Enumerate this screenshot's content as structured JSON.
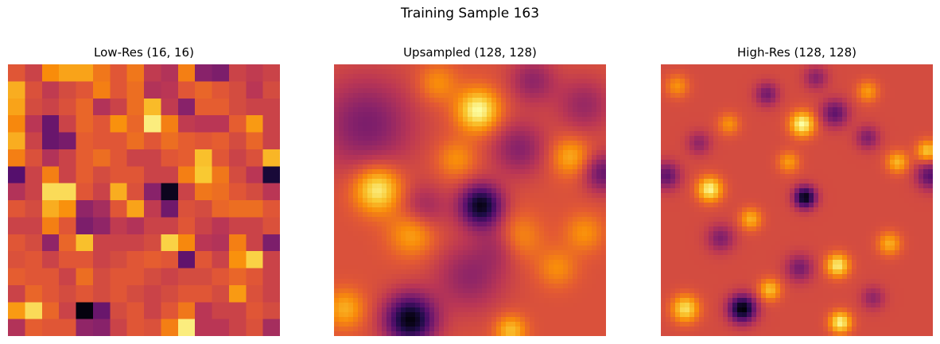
{
  "figure": {
    "title": "Training Sample 163"
  },
  "chart_data": [
    {
      "type": "heatmap",
      "title": "Low-Res (16, 16)",
      "colormap": "inferno",
      "axes": "off",
      "vmin": 0,
      "vmax": 1,
      "rows": 16,
      "cols": 16,
      "values": [
        [
          0.62,
          0.55,
          0.75,
          0.8,
          0.8,
          0.7,
          0.62,
          0.7,
          0.52,
          0.48,
          0.72,
          0.38,
          0.35,
          0.55,
          0.52,
          0.55
        ],
        [
          0.82,
          0.6,
          0.52,
          0.58,
          0.62,
          0.72,
          0.62,
          0.68,
          0.48,
          0.5,
          0.62,
          0.66,
          0.62,
          0.58,
          0.5,
          0.58
        ],
        [
          0.8,
          0.58,
          0.55,
          0.6,
          0.66,
          0.48,
          0.55,
          0.68,
          0.85,
          0.52,
          0.38,
          0.64,
          0.64,
          0.58,
          0.55,
          0.55
        ],
        [
          0.74,
          0.5,
          0.3,
          0.55,
          0.66,
          0.62,
          0.76,
          0.66,
          0.96,
          0.72,
          0.52,
          0.5,
          0.5,
          0.64,
          0.78,
          0.55
        ],
        [
          0.82,
          0.55,
          0.3,
          0.34,
          0.64,
          0.62,
          0.62,
          0.68,
          0.62,
          0.68,
          0.64,
          0.62,
          0.64,
          0.58,
          0.66,
          0.55
        ],
        [
          0.72,
          0.6,
          0.48,
          0.55,
          0.64,
          0.68,
          0.62,
          0.55,
          0.55,
          0.62,
          0.64,
          0.86,
          0.62,
          0.55,
          0.6,
          0.84
        ],
        [
          0.25,
          0.55,
          0.72,
          0.55,
          0.64,
          0.58,
          0.62,
          0.62,
          0.55,
          0.55,
          0.72,
          0.88,
          0.7,
          0.58,
          0.5,
          0.1
        ],
        [
          0.48,
          0.55,
          0.92,
          0.92,
          0.62,
          0.55,
          0.82,
          0.6,
          0.38,
          0.05,
          0.55,
          0.7,
          0.68,
          0.62,
          0.58,
          0.5
        ],
        [
          0.62,
          0.58,
          0.82,
          0.76,
          0.4,
          0.45,
          0.62,
          0.8,
          0.52,
          0.32,
          0.6,
          0.58,
          0.66,
          0.68,
          0.68,
          0.62
        ],
        [
          0.55,
          0.55,
          0.72,
          0.62,
          0.35,
          0.4,
          0.52,
          0.48,
          0.55,
          0.55,
          0.62,
          0.55,
          0.5,
          0.55,
          0.55,
          0.6
        ],
        [
          0.62,
          0.58,
          0.4,
          0.66,
          0.86,
          0.55,
          0.55,
          0.55,
          0.58,
          0.9,
          0.74,
          0.5,
          0.48,
          0.72,
          0.55,
          0.35
        ],
        [
          0.6,
          0.62,
          0.55,
          0.62,
          0.62,
          0.55,
          0.58,
          0.62,
          0.64,
          0.62,
          0.28,
          0.62,
          0.55,
          0.76,
          0.9,
          0.55
        ],
        [
          0.64,
          0.62,
          0.62,
          0.55,
          0.68,
          0.58,
          0.62,
          0.62,
          0.58,
          0.55,
          0.58,
          0.58,
          0.62,
          0.66,
          0.62,
          0.55
        ],
        [
          0.55,
          0.66,
          0.62,
          0.58,
          0.62,
          0.58,
          0.62,
          0.58,
          0.55,
          0.58,
          0.62,
          0.62,
          0.58,
          0.78,
          0.6,
          0.55
        ],
        [
          0.78,
          0.92,
          0.66,
          0.55,
          0.02,
          0.3,
          0.58,
          0.62,
          0.55,
          0.62,
          0.7,
          0.5,
          0.55,
          0.55,
          0.62,
          0.58
        ],
        [
          0.48,
          0.64,
          0.62,
          0.62,
          0.4,
          0.38,
          0.55,
          0.62,
          0.6,
          0.72,
          0.96,
          0.5,
          0.5,
          0.55,
          0.6,
          0.45
        ]
      ]
    },
    {
      "type": "heatmap",
      "title": "Upsampled (128, 128)",
      "colormap": "inferno",
      "axes": "off",
      "vmin": 0,
      "vmax": 1,
      "interpolation": "bicubic",
      "base": 0.6,
      "features": [
        {
          "x": 0.54,
          "y": 0.52,
          "v": -0.56,
          "s": 0.055
        },
        {
          "x": 0.28,
          "y": 0.94,
          "v": -0.58,
          "s": 0.065
        },
        {
          "x": 0.12,
          "y": 0.22,
          "v": -0.25,
          "s": 0.12
        },
        {
          "x": 0.5,
          "y": 0.78,
          "v": -0.2,
          "s": 0.09
        },
        {
          "x": 0.99,
          "y": 0.4,
          "v": -0.3,
          "s": 0.05
        },
        {
          "x": 0.68,
          "y": 0.31,
          "v": -0.22,
          "s": 0.07
        },
        {
          "x": 0.92,
          "y": 0.15,
          "v": -0.18,
          "s": 0.07
        },
        {
          "x": 0.73,
          "y": 0.06,
          "v": -0.2,
          "s": 0.06
        },
        {
          "x": 0.33,
          "y": 0.53,
          "v": -0.18,
          "s": 0.06
        },
        {
          "x": 0.62,
          "y": 0.66,
          "v": -0.18,
          "s": 0.06
        },
        {
          "x": 0.53,
          "y": 0.17,
          "v": 0.4,
          "s": 0.055
        },
        {
          "x": 0.16,
          "y": 0.46,
          "v": 0.38,
          "s": 0.06
        },
        {
          "x": 0.87,
          "y": 0.34,
          "v": 0.22,
          "s": 0.05
        },
        {
          "x": 0.67,
          "y": 0.64,
          "v": 0.22,
          "s": 0.06
        },
        {
          "x": 0.29,
          "y": 0.62,
          "v": 0.22,
          "s": 0.06
        },
        {
          "x": 0.04,
          "y": 0.9,
          "v": 0.22,
          "s": 0.05
        },
        {
          "x": 0.65,
          "y": 0.98,
          "v": 0.26,
          "s": 0.04
        },
        {
          "x": 0.38,
          "y": 0.07,
          "v": 0.16,
          "s": 0.05
        },
        {
          "x": 0.82,
          "y": 0.75,
          "v": 0.15,
          "s": 0.05
        },
        {
          "x": 0.92,
          "y": 0.62,
          "v": 0.16,
          "s": 0.05
        },
        {
          "x": 0.45,
          "y": 0.35,
          "v": 0.16,
          "s": 0.05
        }
      ]
    },
    {
      "type": "heatmap",
      "title": "High-Res (128, 128)",
      "colormap": "inferno",
      "axes": "off",
      "vmin": 0,
      "vmax": 1,
      "interpolation": "nearest",
      "base": 0.58,
      "features": [
        {
          "x": 0.53,
          "y": 0.49,
          "v": -0.56,
          "s": 0.028
        },
        {
          "x": 0.3,
          "y": 0.9,
          "v": -0.58,
          "s": 0.035
        },
        {
          "x": 0.02,
          "y": 0.41,
          "v": -0.3,
          "s": 0.035
        },
        {
          "x": 0.99,
          "y": 0.41,
          "v": -0.32,
          "s": 0.035
        },
        {
          "x": 0.64,
          "y": 0.18,
          "v": -0.3,
          "s": 0.035
        },
        {
          "x": 0.39,
          "y": 0.11,
          "v": -0.25,
          "s": 0.03
        },
        {
          "x": 0.22,
          "y": 0.64,
          "v": -0.22,
          "s": 0.035
        },
        {
          "x": 0.76,
          "y": 0.27,
          "v": -0.22,
          "s": 0.03
        },
        {
          "x": 0.51,
          "y": 0.75,
          "v": -0.24,
          "s": 0.035
        },
        {
          "x": 0.57,
          "y": 0.05,
          "v": -0.2,
          "s": 0.03
        },
        {
          "x": 0.14,
          "y": 0.29,
          "v": -0.18,
          "s": 0.03
        },
        {
          "x": 0.78,
          "y": 0.86,
          "v": -0.18,
          "s": 0.03
        },
        {
          "x": 0.52,
          "y": 0.22,
          "v": 0.42,
          "s": 0.032
        },
        {
          "x": 0.18,
          "y": 0.46,
          "v": 0.4,
          "s": 0.032
        },
        {
          "x": 0.65,
          "y": 0.74,
          "v": 0.38,
          "s": 0.03
        },
        {
          "x": 0.66,
          "y": 0.95,
          "v": 0.4,
          "s": 0.028
        },
        {
          "x": 0.09,
          "y": 0.9,
          "v": 0.35,
          "s": 0.035
        },
        {
          "x": 0.4,
          "y": 0.83,
          "v": 0.28,
          "s": 0.028
        },
        {
          "x": 0.87,
          "y": 0.36,
          "v": 0.26,
          "s": 0.028
        },
        {
          "x": 0.98,
          "y": 0.32,
          "v": 0.3,
          "s": 0.028
        },
        {
          "x": 0.33,
          "y": 0.57,
          "v": 0.25,
          "s": 0.028
        },
        {
          "x": 0.47,
          "y": 0.36,
          "v": 0.2,
          "s": 0.028
        },
        {
          "x": 0.76,
          "y": 0.1,
          "v": 0.2,
          "s": 0.028
        },
        {
          "x": 0.84,
          "y": 0.66,
          "v": 0.24,
          "s": 0.03
        },
        {
          "x": 0.06,
          "y": 0.08,
          "v": 0.18,
          "s": 0.03
        },
        {
          "x": 0.25,
          "y": 0.22,
          "v": 0.18,
          "s": 0.028
        }
      ]
    }
  ]
}
